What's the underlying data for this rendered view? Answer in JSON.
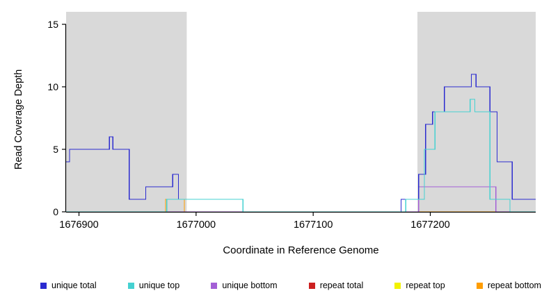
{
  "plot": {
    "x_title": "Coordinate in Reference Genome",
    "y_title": "Read Coverage Depth",
    "x_ticks": [
      1676900,
      1677000,
      1677100,
      1677200
    ],
    "y_ticks": [
      0,
      5,
      10,
      15
    ],
    "xlim": [
      1676889,
      1677290
    ],
    "ylim": [
      0,
      16
    ],
    "shade_color": "#d9d9d9",
    "axis_color": "#000000",
    "shaded_regions": [
      [
        1676889,
        1676992
      ],
      [
        1677189,
        1677290
      ]
    ]
  },
  "chart_data": {
    "type": "line",
    "step": true,
    "title": "",
    "xlabel": "Coordinate in Reference Genome",
    "ylabel": "Read Coverage Depth",
    "xlim": [
      1676889,
      1677290
    ],
    "ylim": [
      0,
      16
    ],
    "x_ticks": [
      1676900,
      1677000,
      1677100,
      1677200
    ],
    "y_ticks": [
      0,
      5,
      10,
      15
    ],
    "shaded_regions": [
      [
        1676889,
        1676992
      ],
      [
        1677189,
        1677290
      ]
    ],
    "draw_order": [
      "repeat total",
      "repeat top",
      "repeat bottom",
      "unique bottom",
      "unique total",
      "unique top"
    ],
    "series": [
      {
        "name": "unique total",
        "color": "#2a2ad0",
        "points": [
          [
            1676889,
            4
          ],
          [
            1676892,
            5
          ],
          [
            1676926,
            6
          ],
          [
            1676929,
            5
          ],
          [
            1676943,
            1
          ],
          [
            1676957,
            2
          ],
          [
            1676980,
            3
          ],
          [
            1676985,
            1
          ],
          [
            1677040,
            0
          ],
          [
            1677175,
            1
          ],
          [
            1677190,
            3
          ],
          [
            1677196,
            7
          ],
          [
            1677202,
            8
          ],
          [
            1677212,
            10
          ],
          [
            1677235,
            11
          ],
          [
            1677239,
            10
          ],
          [
            1677251,
            8
          ],
          [
            1677257,
            4
          ],
          [
            1677270,
            1
          ]
        ]
      },
      {
        "name": "unique top",
        "color": "#45d1d1",
        "points": [
          [
            1676889,
            0
          ],
          [
            1676975,
            1
          ],
          [
            1677040,
            0
          ],
          [
            1677179,
            1
          ],
          [
            1677195,
            5
          ],
          [
            1677204,
            8
          ],
          [
            1677234,
            9
          ],
          [
            1677238,
            8
          ],
          [
            1677251,
            1
          ],
          [
            1677268,
            0
          ]
        ]
      },
      {
        "name": "unique bottom",
        "color": "#a35fd6",
        "points": [
          [
            1676889,
            0
          ],
          [
            1677190,
            2
          ],
          [
            1677256,
            0
          ]
        ]
      },
      {
        "name": "repeat total",
        "color": "#cc2020",
        "points": [
          [
            1676889,
            0
          ]
        ]
      },
      {
        "name": "repeat top",
        "color": "#f2f200",
        "points": [
          [
            1676889,
            0
          ]
        ]
      },
      {
        "name": "repeat bottom",
        "color": "#ff9d00",
        "points": [
          [
            1676889,
            0
          ],
          [
            1676974,
            1
          ],
          [
            1676990,
            0
          ]
        ]
      }
    ]
  },
  "legend": {
    "items": [
      {
        "label": "unique total",
        "color": "#2a2ad0"
      },
      {
        "label": "unique top",
        "color": "#45d1d1"
      },
      {
        "label": "unique bottom",
        "color": "#a35fd6"
      },
      {
        "label": "repeat total",
        "color": "#cc2020"
      },
      {
        "label": "repeat top",
        "color": "#f2f200"
      },
      {
        "label": "repeat bottom",
        "color": "#ff9d00"
      }
    ]
  }
}
